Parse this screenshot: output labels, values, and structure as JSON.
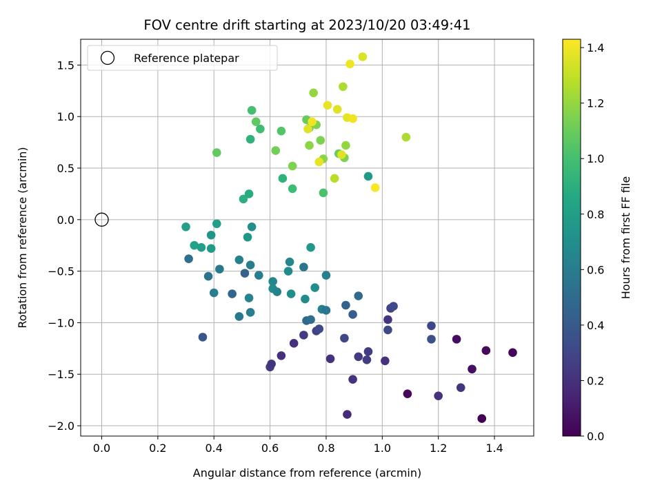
{
  "chart_data": {
    "type": "scatter",
    "title": "FOV centre drift starting at 2023/10/20 03:49:41",
    "xlabel": "Angular distance from reference (arcmin)",
    "ylabel": "Rotation from reference (arcmin)",
    "xlim": [
      -0.075,
      1.54
    ],
    "ylim": [
      -2.1,
      1.75
    ],
    "xticks": [
      0.0,
      0.2,
      0.4,
      0.6,
      0.8,
      1.0,
      1.2,
      1.4
    ],
    "xtick_labels": [
      "0.0",
      "0.2",
      "0.4",
      "0.6",
      "0.8",
      "1.0",
      "1.2",
      "1.4"
    ],
    "yticks": [
      1.5,
      1.0,
      0.5,
      0.0,
      -0.5,
      -1.0,
      -1.5,
      -2.0
    ],
    "ytick_labels": [
      "1.5",
      "1.0",
      "0.5",
      "0.0",
      "−0.5",
      "−1.0",
      "−1.5",
      "−2.0"
    ],
    "grid": true,
    "colormap": "viridis",
    "colorbar": {
      "label": "Hours from first FF file",
      "range": [
        0.0,
        1.43
      ],
      "ticks": [
        0.0,
        0.2,
        0.4,
        0.6,
        0.8,
        1.0,
        1.2,
        1.4
      ],
      "tick_labels": [
        "0.0",
        "0.2",
        "0.4",
        "0.6",
        "0.8",
        "1.0",
        "1.2",
        "1.4"
      ]
    },
    "legend": {
      "position": "top-left",
      "entries": [
        "Reference platepar"
      ]
    },
    "reference_point": {
      "x": 0.0,
      "y": 0.0
    },
    "points": [
      {
        "x": 1.355,
        "y": -1.93,
        "c": 0.0
      },
      {
        "x": 1.09,
        "y": -1.69,
        "c": 0.03
      },
      {
        "x": 1.465,
        "y": -1.29,
        "c": 0.02
      },
      {
        "x": 1.37,
        "y": -1.27,
        "c": 0.03
      },
      {
        "x": 1.265,
        "y": -1.16,
        "c": 0.05
      },
      {
        "x": 1.32,
        "y": -1.45,
        "c": 0.06
      },
      {
        "x": 0.875,
        "y": -1.89,
        "c": 0.17
      },
      {
        "x": 1.2,
        "y": -1.71,
        "c": 0.2
      },
      {
        "x": 1.28,
        "y": -1.63,
        "c": 0.22
      },
      {
        "x": 0.895,
        "y": -1.55,
        "c": 0.21
      },
      {
        "x": 0.6,
        "y": -1.43,
        "c": 0.25
      },
      {
        "x": 0.605,
        "y": -1.4,
        "c": 0.22
      },
      {
        "x": 0.64,
        "y": -1.32,
        "c": 0.2
      },
      {
        "x": 0.685,
        "y": -1.2,
        "c": 0.19
      },
      {
        "x": 0.72,
        "y": -1.12,
        "c": 0.25
      },
      {
        "x": 0.815,
        "y": -1.35,
        "c": 0.2
      },
      {
        "x": 0.915,
        "y": -1.33,
        "c": 0.24
      },
      {
        "x": 0.95,
        "y": -1.28,
        "c": 0.25
      },
      {
        "x": 0.945,
        "y": -1.36,
        "c": 0.26
      },
      {
        "x": 1.01,
        "y": -1.37,
        "c": 0.2
      },
      {
        "x": 0.865,
        "y": -1.15,
        "c": 0.3
      },
      {
        "x": 0.765,
        "y": -1.08,
        "c": 0.28
      },
      {
        "x": 0.775,
        "y": -1.06,
        "c": 0.32
      },
      {
        "x": 1.02,
        "y": -0.97,
        "c": 0.22
      },
      {
        "x": 1.02,
        "y": -1.07,
        "c": 0.31
      },
      {
        "x": 1.03,
        "y": -0.86,
        "c": 0.28
      },
      {
        "x": 1.04,
        "y": -0.84,
        "c": 0.32
      },
      {
        "x": 1.175,
        "y": -1.03,
        "c": 0.3
      },
      {
        "x": 1.175,
        "y": -1.16,
        "c": 0.35
      },
      {
        "x": 0.36,
        "y": -1.14,
        "c": 0.38
      },
      {
        "x": 0.895,
        "y": -0.92,
        "c": 0.42
      },
      {
        "x": 0.87,
        "y": -0.83,
        "c": 0.45
      },
      {
        "x": 0.915,
        "y": -0.74,
        "c": 0.5
      },
      {
        "x": 0.73,
        "y": -0.98,
        "c": 0.48
      },
      {
        "x": 0.745,
        "y": -0.97,
        "c": 0.52
      },
      {
        "x": 0.785,
        "y": -0.87,
        "c": 0.62
      },
      {
        "x": 0.8,
        "y": -0.88,
        "c": 0.56
      },
      {
        "x": 0.465,
        "y": -0.72,
        "c": 0.47
      },
      {
        "x": 0.49,
        "y": -0.94,
        "c": 0.58
      },
      {
        "x": 0.53,
        "y": -0.9,
        "c": 0.6
      },
      {
        "x": 0.525,
        "y": -0.76,
        "c": 0.64
      },
      {
        "x": 0.38,
        "y": -0.55,
        "c": 0.55
      },
      {
        "x": 0.4,
        "y": -0.71,
        "c": 0.6
      },
      {
        "x": 0.42,
        "y": -0.48,
        "c": 0.57
      },
      {
        "x": 0.31,
        "y": -0.38,
        "c": 0.52
      },
      {
        "x": 0.49,
        "y": -0.39,
        "c": 0.62
      },
      {
        "x": 0.51,
        "y": -0.52,
        "c": 0.45
      },
      {
        "x": 0.53,
        "y": -0.44,
        "c": 0.6
      },
      {
        "x": 0.56,
        "y": -0.54,
        "c": 0.6
      },
      {
        "x": 0.61,
        "y": -0.6,
        "c": 0.65
      },
      {
        "x": 0.61,
        "y": -0.67,
        "c": 0.68
      },
      {
        "x": 0.625,
        "y": -0.7,
        "c": 0.63
      },
      {
        "x": 0.665,
        "y": -0.5,
        "c": 0.68
      },
      {
        "x": 0.67,
        "y": -0.41,
        "c": 0.66
      },
      {
        "x": 0.675,
        "y": -0.72,
        "c": 0.7
      },
      {
        "x": 0.72,
        "y": -0.46,
        "c": 0.55
      },
      {
        "x": 0.725,
        "y": -0.77,
        "c": 0.68
      },
      {
        "x": 0.76,
        "y": -0.66,
        "c": 0.7
      },
      {
        "x": 0.8,
        "y": -0.54,
        "c": 0.62
      },
      {
        "x": 0.745,
        "y": -0.27,
        "c": 0.76
      },
      {
        "x": 0.3,
        "y": -0.07,
        "c": 0.8
      },
      {
        "x": 0.33,
        "y": -0.25,
        "c": 0.82
      },
      {
        "x": 0.355,
        "y": -0.27,
        "c": 0.8
      },
      {
        "x": 0.39,
        "y": -0.28,
        "c": 0.78
      },
      {
        "x": 0.39,
        "y": -0.15,
        "c": 0.74
      },
      {
        "x": 0.41,
        "y": -0.04,
        "c": 0.8
      },
      {
        "x": 0.52,
        "y": -0.17,
        "c": 0.75
      },
      {
        "x": 0.535,
        "y": -0.07,
        "c": 0.7
      },
      {
        "x": 0.505,
        "y": 0.2,
        "c": 0.9
      },
      {
        "x": 0.525,
        "y": 0.25,
        "c": 0.88
      },
      {
        "x": 0.95,
        "y": 0.42,
        "c": 0.78
      },
      {
        "x": 0.645,
        "y": 0.4,
        "c": 0.92
      },
      {
        "x": 0.68,
        "y": 0.3,
        "c": 0.98
      },
      {
        "x": 0.79,
        "y": 0.26,
        "c": 1.02
      },
      {
        "x": 0.53,
        "y": 0.78,
        "c": 0.92
      },
      {
        "x": 0.565,
        "y": 0.88,
        "c": 0.98
      },
      {
        "x": 0.535,
        "y": 1.06,
        "c": 1.0
      },
      {
        "x": 0.55,
        "y": 0.95,
        "c": 1.07
      },
      {
        "x": 0.64,
        "y": 0.86,
        "c": 1.04
      },
      {
        "x": 0.41,
        "y": 0.65,
        "c": 1.08
      },
      {
        "x": 0.62,
        "y": 0.67,
        "c": 1.12
      },
      {
        "x": 0.68,
        "y": 0.52,
        "c": 1.15
      },
      {
        "x": 0.73,
        "y": 0.97,
        "c": 1.1
      },
      {
        "x": 0.74,
        "y": 0.89,
        "c": 1.12
      },
      {
        "x": 0.765,
        "y": 0.92,
        "c": 1.15
      },
      {
        "x": 0.74,
        "y": 0.72,
        "c": 1.18
      },
      {
        "x": 0.78,
        "y": 0.77,
        "c": 1.15
      },
      {
        "x": 0.79,
        "y": 0.59,
        "c": 1.18
      },
      {
        "x": 0.845,
        "y": 0.64,
        "c": 1.1
      },
      {
        "x": 0.865,
        "y": 0.6,
        "c": 1.15
      },
      {
        "x": 0.87,
        "y": 0.72,
        "c": 1.2
      },
      {
        "x": 0.755,
        "y": 1.23,
        "c": 1.2
      },
      {
        "x": 0.86,
        "y": 1.29,
        "c": 1.25
      },
      {
        "x": 0.83,
        "y": 0.4,
        "c": 1.28
      },
      {
        "x": 1.085,
        "y": 0.8,
        "c": 1.25
      },
      {
        "x": 0.93,
        "y": 1.58,
        "c": 1.35
      },
      {
        "x": 0.885,
        "y": 1.51,
        "c": 1.4
      },
      {
        "x": 0.805,
        "y": 1.11,
        "c": 1.38
      },
      {
        "x": 0.84,
        "y": 1.07,
        "c": 1.36
      },
      {
        "x": 0.875,
        "y": 0.99,
        "c": 1.37
      },
      {
        "x": 0.895,
        "y": 0.98,
        "c": 1.4
      },
      {
        "x": 0.75,
        "y": 0.95,
        "c": 1.4
      },
      {
        "x": 0.735,
        "y": 0.88,
        "c": 1.36
      },
      {
        "x": 0.775,
        "y": 0.56,
        "c": 1.38
      },
      {
        "x": 0.855,
        "y": 0.63,
        "c": 1.36
      },
      {
        "x": 0.975,
        "y": 0.31,
        "c": 1.42
      }
    ]
  }
}
